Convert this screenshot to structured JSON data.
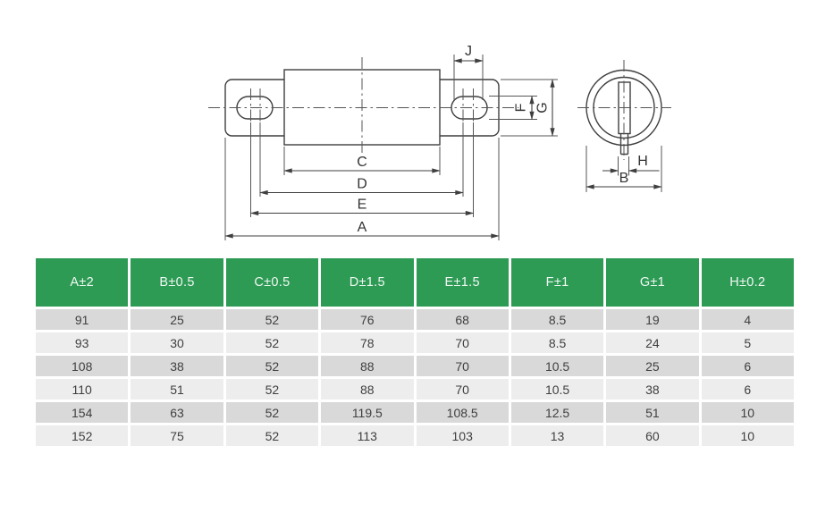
{
  "drawing": {
    "labels": {
      "a": "A",
      "b": "B",
      "c": "C",
      "d": "D",
      "e": "E",
      "f": "F",
      "g": "G",
      "h": "H",
      "j": "J"
    }
  },
  "table": {
    "headers": [
      "A±2",
      "B±0.5",
      "C±0.5",
      "D±1.5",
      "E±1.5",
      "F±1",
      "G±1",
      "H±0.2"
    ],
    "rows": [
      [
        "91",
        "25",
        "52",
        "76",
        "68",
        "8.5",
        "19",
        "4"
      ],
      [
        "93",
        "30",
        "52",
        "78",
        "70",
        "8.5",
        "24",
        "5"
      ],
      [
        "108",
        "38",
        "52",
        "88",
        "70",
        "10.5",
        "25",
        "6"
      ],
      [
        "110",
        "51",
        "52",
        "88",
        "70",
        "10.5",
        "38",
        "6"
      ],
      [
        "154",
        "63",
        "52",
        "119.5",
        "108.5",
        "12.5",
        "51",
        "10"
      ],
      [
        "152",
        "75",
        "52",
        "113",
        "103",
        "13",
        "60",
        "10"
      ]
    ]
  },
  "colors": {
    "header-bg": "#2e9b55",
    "header-text": "#f0f8f3",
    "row-odd": "#d9d9d9",
    "row-even": "#ededed",
    "cell-text": "#3f3f3f",
    "line": "#3f3f3f",
    "dim-line": "#555555"
  }
}
